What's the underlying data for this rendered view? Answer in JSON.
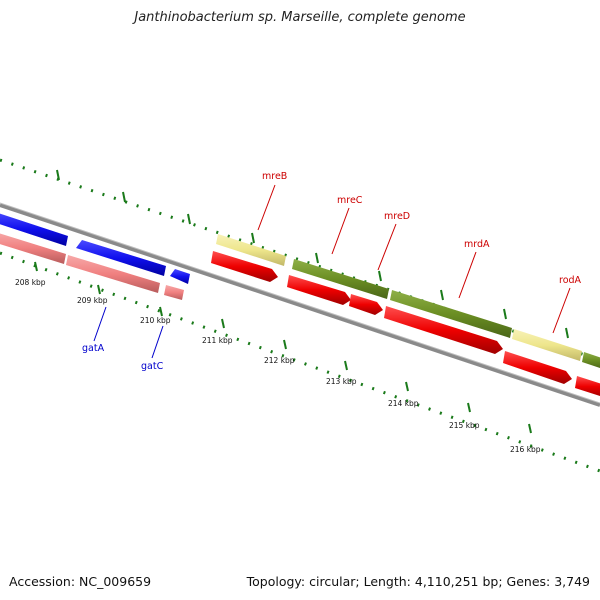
{
  "title": "Janthinobacterium sp. Marseille, complete genome",
  "footer": {
    "accession": "Accession: NC_009659",
    "summary": "Topology: circular; Length: 4,110,251 bp; Genes: 3,749"
  },
  "ticks": [
    "208 kbp",
    "209 kbp",
    "210 kbp",
    "211 kbp",
    "212 kbp",
    "213 kbp",
    "214 kbp",
    "215 kbp",
    "216 kbp"
  ],
  "gene_labels": {
    "gatA": "gatA",
    "gatC": "gatC",
    "mreB": "mreB",
    "mreC": "mreC",
    "mreD": "mreD",
    "mrdA": "mrdA",
    "rodA": "rodA"
  },
  "colors": {
    "backbone": "#888888",
    "blue_gene": "#1010ee",
    "pink_gene": "#f08080",
    "red_gene": "#ee0000",
    "olive_gene": "#6b8e23",
    "khaki_gene": "#eee68c",
    "tick_green": "#1a7a1a",
    "label_red": "#cc0000",
    "label_blue": "#0000cc"
  }
}
